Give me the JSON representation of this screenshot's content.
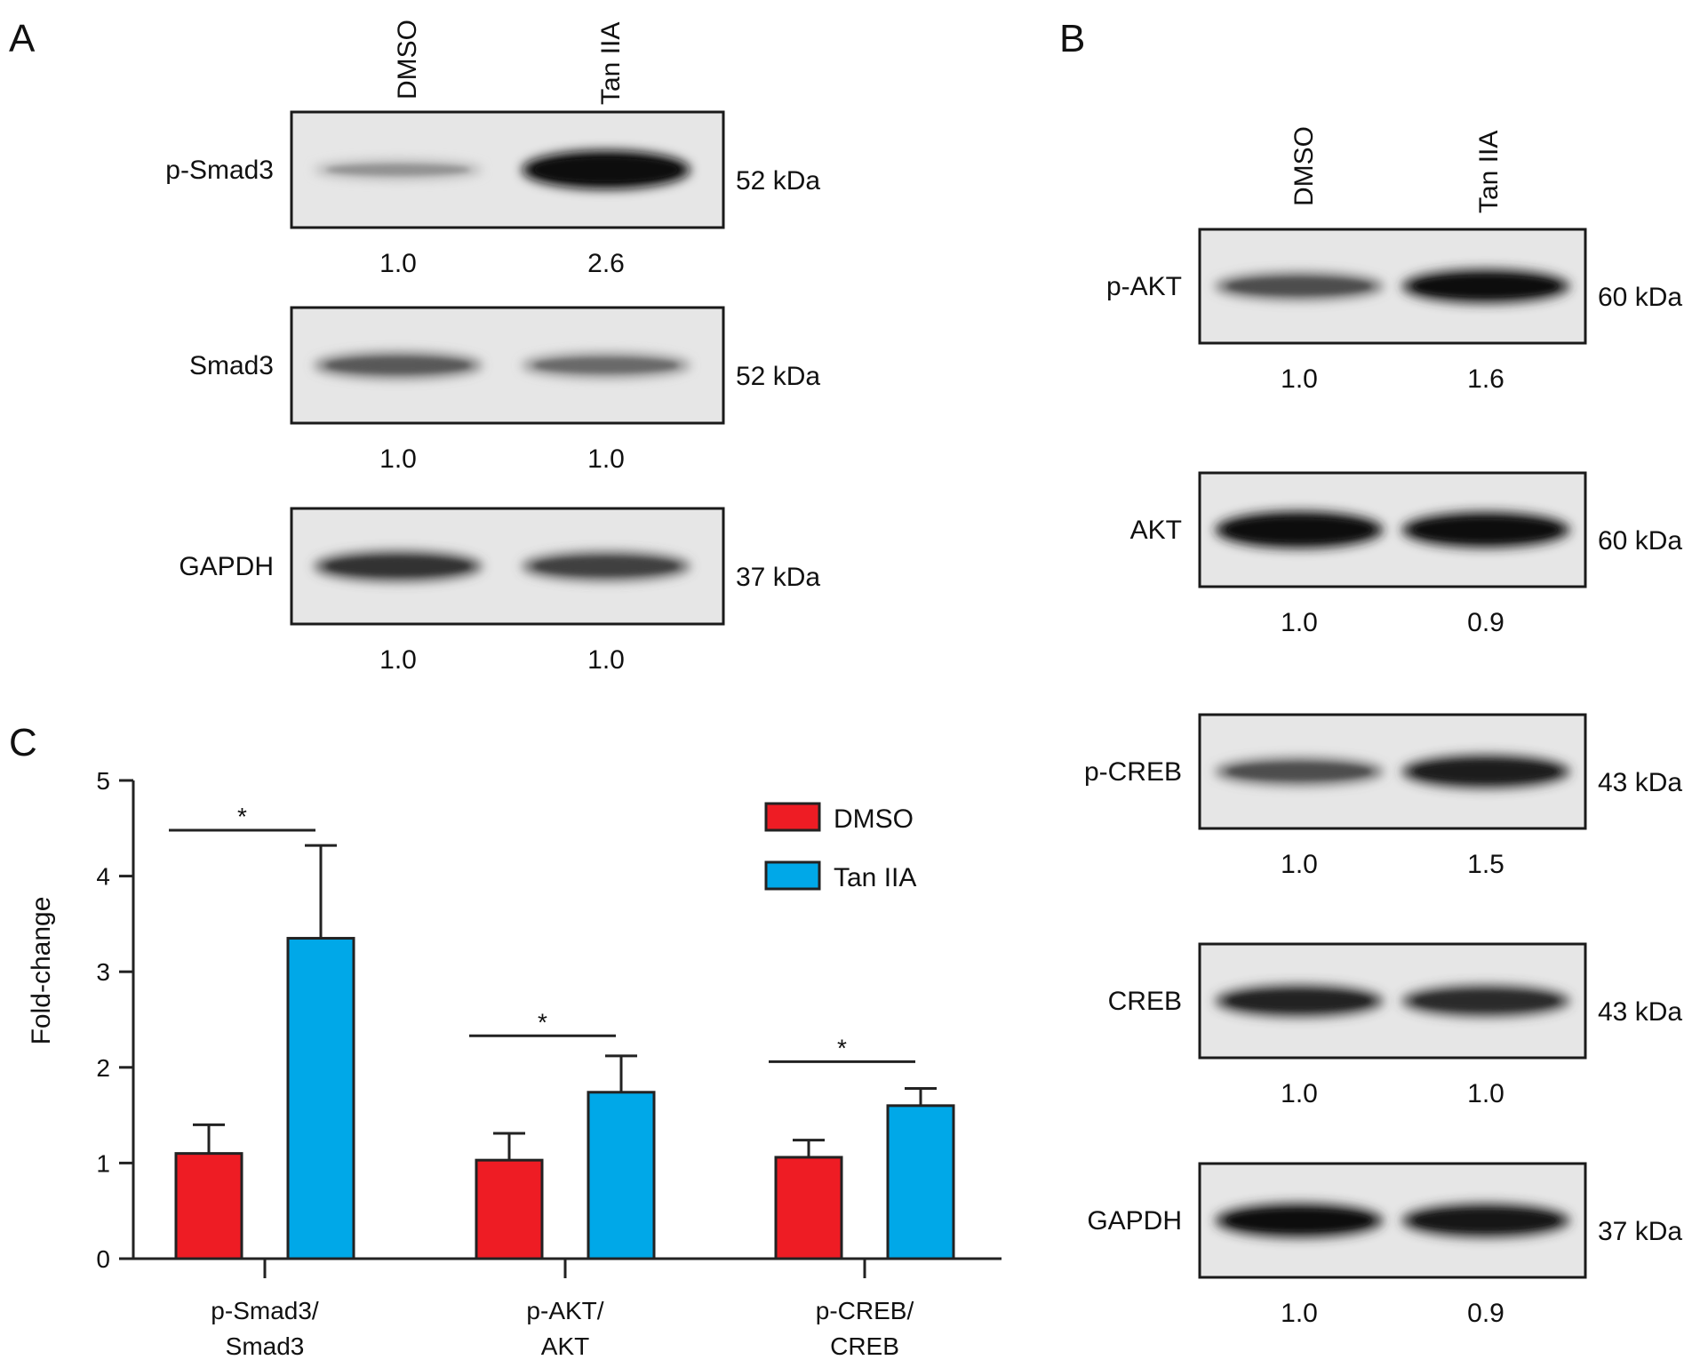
{
  "panel_a": {
    "letter": "A",
    "lane_headers": [
      "DMSO",
      "Tan IIA"
    ],
    "blots": [
      {
        "protein": "p-Smad3",
        "mw": "52 kDa",
        "quant": [
          "1.0",
          "2.6"
        ],
        "intensity": [
          0.22,
          1.0
        ]
      },
      {
        "protein": "Smad3",
        "mw": "52 kDa",
        "quant": [
          "1.0",
          "1.0"
        ],
        "intensity": [
          0.5,
          0.42
        ]
      },
      {
        "protein": "GAPDH",
        "mw": "37 kDa",
        "quant": [
          "1.0",
          "1.0"
        ],
        "intensity": [
          0.68,
          0.62
        ]
      }
    ]
  },
  "panel_b": {
    "letter": "B",
    "lane_headers": [
      "DMSO",
      "Tan IIA"
    ],
    "blots": [
      {
        "protein": "p-AKT",
        "mw": "60 kDa",
        "quant": [
          "1.0",
          "1.6"
        ],
        "intensity": [
          0.55,
          0.85
        ]
      },
      {
        "protein": "AKT",
        "mw": "60 kDa",
        "quant": [
          "1.0",
          "0.9"
        ],
        "intensity": [
          0.95,
          0.9
        ]
      },
      {
        "protein": "p-CREB",
        "mw": "43 kDa",
        "quant": [
          "1.0",
          "1.5"
        ],
        "intensity": [
          0.55,
          0.8
        ]
      },
      {
        "protein": "CREB",
        "mw": "43 kDa",
        "quant": [
          "1.0",
          "1.0"
        ],
        "intensity": [
          0.75,
          0.72
        ]
      },
      {
        "protein": "GAPDH",
        "mw": "37 kDa",
        "quant": [
          "1.0",
          "0.9"
        ],
        "intensity": [
          0.85,
          0.82
        ]
      }
    ]
  },
  "panel_c": {
    "letter": "C",
    "chart_data": {
      "type": "bar",
      "categories": [
        "p-Smad3/\nSmad3",
        "p-AKT/\nAKT",
        "p-CREB/\nCREB"
      ],
      "series": [
        {
          "name": "DMSO",
          "color": "#ee1c24",
          "values": [
            1.1,
            1.03,
            1.06
          ],
          "errors": [
            0.3,
            0.28,
            0.18
          ]
        },
        {
          "name": "Tan IIA",
          "color": "#00a8e8",
          "values": [
            3.35,
            1.74,
            1.6
          ],
          "errors": [
            0.97,
            0.38,
            0.18
          ]
        }
      ],
      "significance": [
        "*",
        "*",
        "*"
      ],
      "ylabel": "Fold-change",
      "ylim": [
        0,
        5
      ],
      "yticks": [
        0,
        1,
        2,
        3,
        4,
        5
      ],
      "legend": "top-right"
    }
  }
}
